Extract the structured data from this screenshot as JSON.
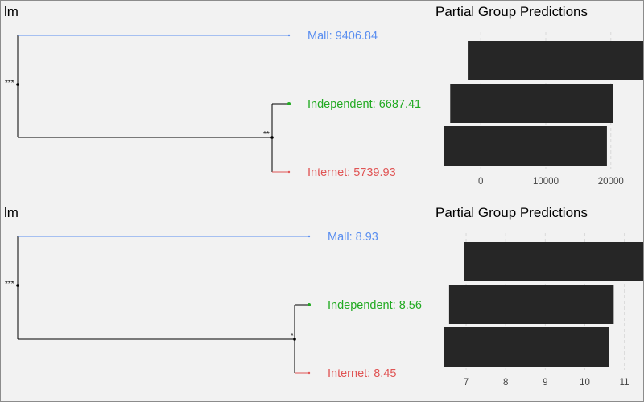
{
  "colors": {
    "mall": "#5b8ff0",
    "independent": "#22aa22",
    "internet": "#e05555",
    "tree": "#000000",
    "bar": "#262626",
    "grid": "#d9d9d9"
  },
  "chart_data": [
    {
      "type": "dendrogram",
      "title": "lm",
      "leaves": [
        {
          "name": "Mall",
          "value": "9406.84",
          "color": "#5b8ff0"
        },
        {
          "name": "Independent",
          "value": "6687.41",
          "color": "#22aa22"
        },
        {
          "name": "Internet",
          "value": "5739.93",
          "color": "#e05555"
        }
      ],
      "root_significance": "***",
      "inner_significance": "**"
    },
    {
      "type": "bar",
      "orientation": "horizontal",
      "title": "Partial Group Predictions",
      "categories": [
        "Mall",
        "Independent",
        "Internet"
      ],
      "intervals": [
        [
          -2000,
          29500
        ],
        [
          -4700,
          20300
        ],
        [
          -5600,
          19400
        ]
      ],
      "xlim": [
        -5600,
        23000
      ],
      "xticks": [
        0,
        10000,
        20000
      ],
      "grid": true
    },
    {
      "type": "dendrogram",
      "title": "lm",
      "leaves": [
        {
          "name": "Mall",
          "value": "8.93",
          "color": "#5b8ff0"
        },
        {
          "name": "Independent",
          "value": "8.56",
          "color": "#22aa22"
        },
        {
          "name": "Internet",
          "value": "8.45",
          "color": "#e05555"
        }
      ],
      "root_significance": "***",
      "inner_significance": "*"
    },
    {
      "type": "bar",
      "orientation": "horizontal",
      "title": "Partial Group Predictions",
      "categories": [
        "Mall",
        "Independent",
        "Internet"
      ],
      "intervals": [
        [
          6.94,
          11.6
        ],
        [
          6.57,
          10.73
        ],
        [
          6.45,
          10.62
        ]
      ],
      "xlim": [
        6.45,
        11.15
      ],
      "xticks": [
        7,
        8,
        9,
        10,
        11
      ],
      "grid": true
    }
  ]
}
